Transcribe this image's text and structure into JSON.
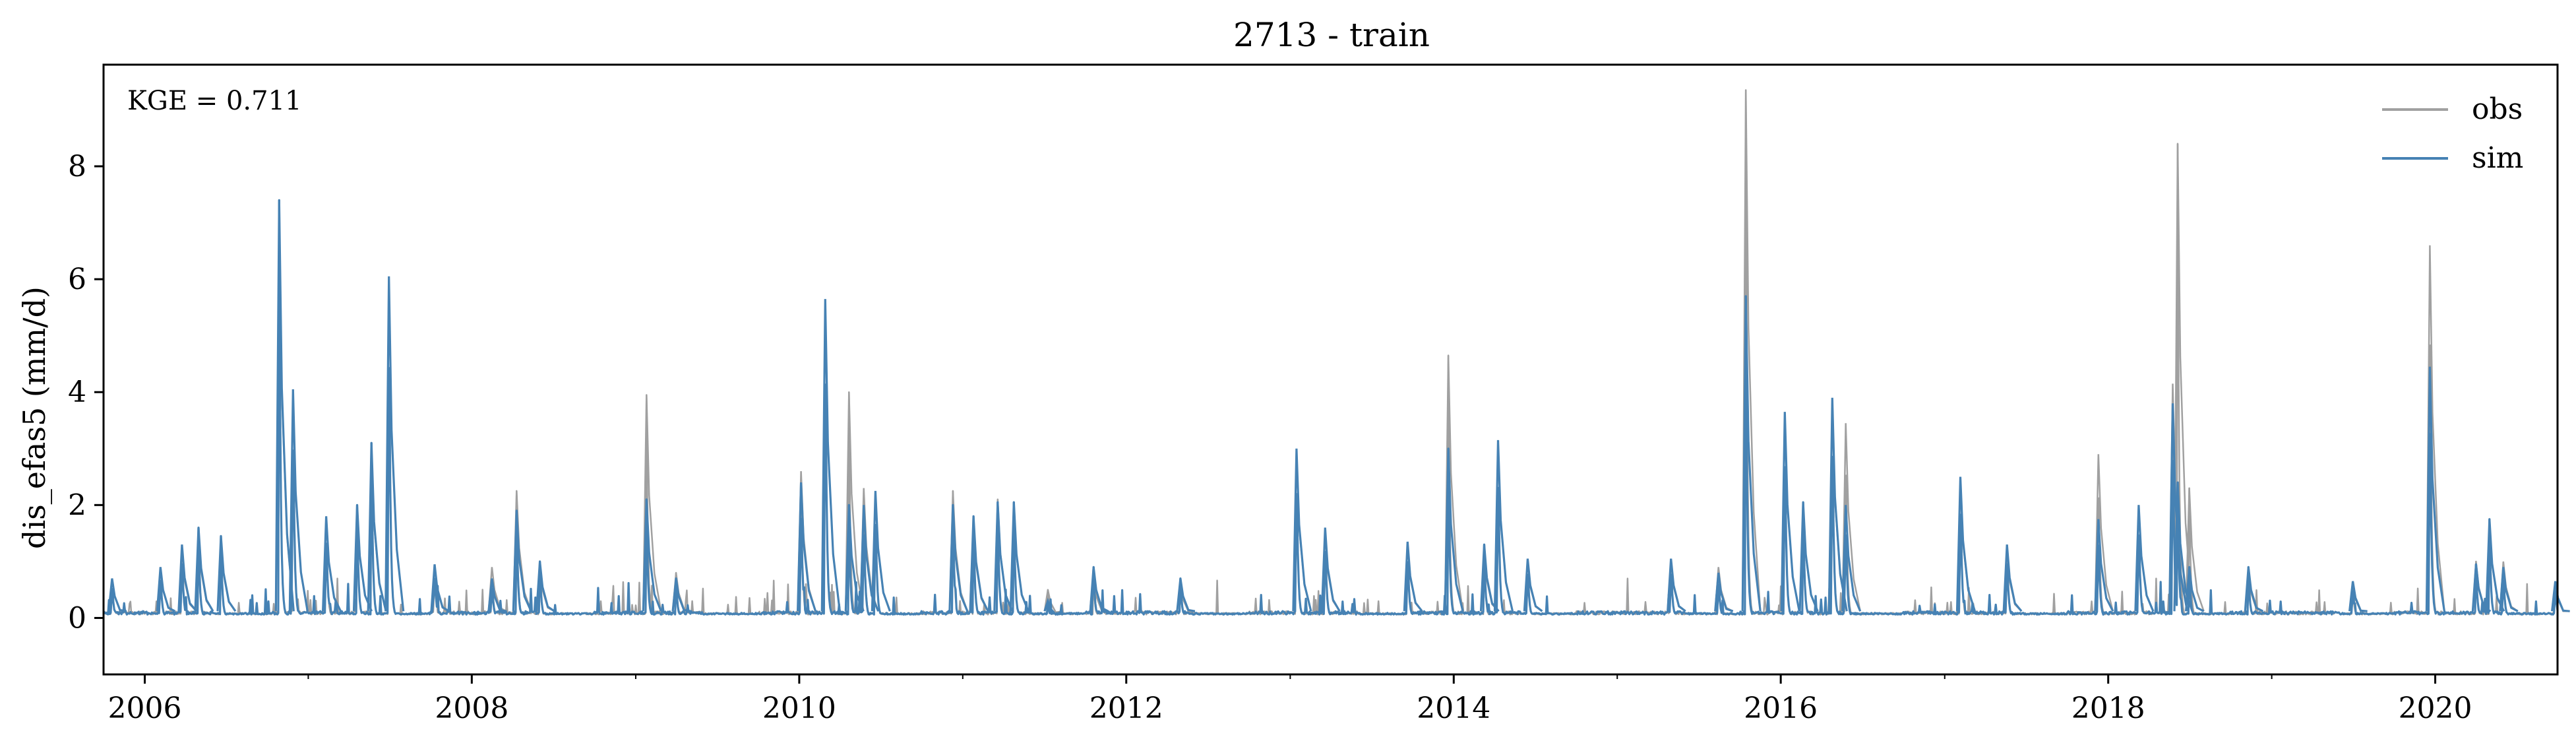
{
  "chart_data": {
    "type": "line",
    "title": "2713 - train",
    "xlabel": "",
    "ylabel": "dis_efas5 (mm/d)",
    "annotation": "KGE = 0.711",
    "xlim": [
      "2005-10-01",
      "2020-09-30"
    ],
    "ylim": [
      -1,
      9.8
    ],
    "x_ticks": [
      "2006",
      "2008",
      "2010",
      "2012",
      "2014",
      "2016",
      "2018",
      "2020"
    ],
    "y_ticks": [
      "0",
      "2",
      "4",
      "6",
      "8"
    ],
    "grid": false,
    "legend_position": "top-right",
    "series": [
      {
        "name": "obs",
        "color": "#a0a0a0",
        "peaks": [
          [
            "2005-10-20",
            0.7
          ],
          [
            "2006-02-05",
            0.9
          ],
          [
            "2006-03-25",
            1.2
          ],
          [
            "2006-05-01",
            1.5
          ],
          [
            "2006-06-20",
            1.4
          ],
          [
            "2006-10-28",
            7.2
          ],
          [
            "2006-11-28",
            4.0
          ],
          [
            "2007-02-10",
            1.8
          ],
          [
            "2007-04-20",
            2.0
          ],
          [
            "2007-05-22",
            3.0
          ],
          [
            "2007-06-30",
            6.0
          ],
          [
            "2007-10-10",
            0.9
          ],
          [
            "2008-02-15",
            0.9
          ],
          [
            "2008-04-10",
            2.25
          ],
          [
            "2008-06-01",
            0.9
          ],
          [
            "2009-01-25",
            3.95
          ],
          [
            "2009-04-01",
            0.8
          ],
          [
            "2010-01-05",
            2.6
          ],
          [
            "2010-02-28",
            5.6
          ],
          [
            "2010-04-22",
            4.0
          ],
          [
            "2010-05-25",
            2.3
          ],
          [
            "2010-06-20",
            2.2
          ],
          [
            "2010-12-10",
            2.25
          ],
          [
            "2011-01-25",
            1.7
          ],
          [
            "2011-03-20",
            2.1
          ],
          [
            "2011-04-25",
            2.0
          ],
          [
            "2011-07-10",
            0.5
          ],
          [
            "2011-10-20",
            0.7
          ],
          [
            "2012-05-01",
            0.6
          ],
          [
            "2013-01-15",
            2.9
          ],
          [
            "2013-03-20",
            1.5
          ],
          [
            "2013-09-20",
            1.3
          ],
          [
            "2013-12-20",
            4.65
          ],
          [
            "2014-03-10",
            1.2
          ],
          [
            "2014-04-10",
            3.1
          ],
          [
            "2014-06-15",
            1.0
          ],
          [
            "2015-05-01",
            1.0
          ],
          [
            "2015-08-15",
            0.9
          ],
          [
            "2015-10-15",
            9.35
          ],
          [
            "2016-01-10",
            3.6
          ],
          [
            "2016-02-20",
            2.0
          ],
          [
            "2016-04-25",
            3.8
          ],
          [
            "2016-05-25",
            3.45
          ],
          [
            "2017-02-05",
            2.4
          ],
          [
            "2017-05-20",
            1.2
          ],
          [
            "2017-12-10",
            2.9
          ],
          [
            "2018-03-10",
            2.0
          ],
          [
            "2018-05-25",
            4.15
          ],
          [
            "2018-06-05",
            8.4
          ],
          [
            "2018-07-01",
            2.3
          ],
          [
            "2018-11-10",
            0.8
          ],
          [
            "2019-07-01",
            0.6
          ],
          [
            "2019-12-20",
            6.6
          ],
          [
            "2020-04-01",
            1.0
          ],
          [
            "2020-05-01",
            1.7
          ],
          [
            "2020-06-01",
            1.0
          ],
          [
            "2020-09-25",
            0.6
          ]
        ]
      },
      {
        "name": "sim",
        "color": "#4682b4",
        "peaks": [
          [
            "2005-10-20",
            0.7
          ],
          [
            "2006-02-05",
            0.9
          ],
          [
            "2006-03-25",
            1.3
          ],
          [
            "2006-05-01",
            1.6
          ],
          [
            "2006-06-20",
            1.45
          ],
          [
            "2006-10-28",
            7.4
          ],
          [
            "2006-11-28",
            4.05
          ],
          [
            "2007-02-10",
            1.8
          ],
          [
            "2007-04-20",
            2.0
          ],
          [
            "2007-05-22",
            3.1
          ],
          [
            "2007-06-30",
            6.05
          ],
          [
            "2007-10-10",
            0.95
          ],
          [
            "2008-02-15",
            0.7
          ],
          [
            "2008-04-10",
            1.9
          ],
          [
            "2008-06-01",
            1.0
          ],
          [
            "2009-01-25",
            2.1
          ],
          [
            "2009-04-01",
            0.7
          ],
          [
            "2010-01-05",
            2.4
          ],
          [
            "2010-02-28",
            5.65
          ],
          [
            "2010-04-22",
            2.0
          ],
          [
            "2010-05-25",
            2.0
          ],
          [
            "2010-06-20",
            2.25
          ],
          [
            "2010-12-10",
            2.0
          ],
          [
            "2011-01-25",
            1.8
          ],
          [
            "2011-03-20",
            2.05
          ],
          [
            "2011-04-25",
            2.05
          ],
          [
            "2011-07-10",
            0.3
          ],
          [
            "2011-10-20",
            0.9
          ],
          [
            "2012-05-01",
            0.7
          ],
          [
            "2013-01-15",
            3.0
          ],
          [
            "2013-03-20",
            1.6
          ],
          [
            "2013-09-20",
            1.35
          ],
          [
            "2013-12-20",
            3.0
          ],
          [
            "2014-03-10",
            1.3
          ],
          [
            "2014-04-10",
            3.15
          ],
          [
            "2014-06-15",
            1.05
          ],
          [
            "2015-05-01",
            1.05
          ],
          [
            "2015-08-15",
            0.8
          ],
          [
            "2015-10-15",
            5.7
          ],
          [
            "2016-01-10",
            3.65
          ],
          [
            "2016-02-20",
            2.05
          ],
          [
            "2016-04-25",
            3.9
          ],
          [
            "2016-05-25",
            2.0
          ],
          [
            "2017-02-05",
            2.5
          ],
          [
            "2017-05-20",
            1.3
          ],
          [
            "2017-12-10",
            1.75
          ],
          [
            "2018-03-10",
            2.0
          ],
          [
            "2018-05-25",
            3.8
          ],
          [
            "2018-06-05",
            2.4
          ],
          [
            "2018-07-01",
            0.9
          ],
          [
            "2018-11-10",
            0.9
          ],
          [
            "2019-07-01",
            0.65
          ],
          [
            "2019-12-20",
            4.45
          ],
          [
            "2020-04-01",
            0.95
          ],
          [
            "2020-05-01",
            1.75
          ],
          [
            "2020-06-01",
            0.9
          ],
          [
            "2020-09-25",
            0.65
          ]
        ]
      }
    ]
  }
}
